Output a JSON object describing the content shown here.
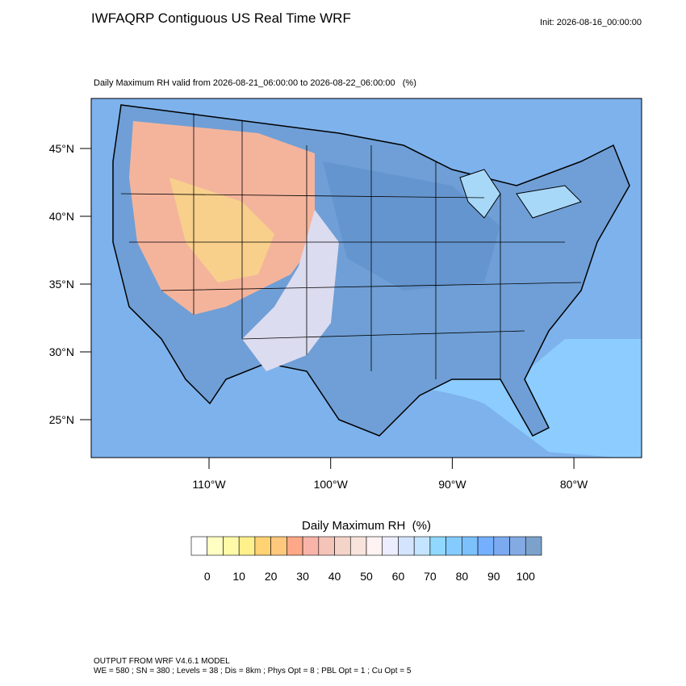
{
  "header": {
    "title": "IWFAQRP Contiguous US Real Time WRF",
    "init": "Init: 2026-08-16_00:00:00",
    "subtitle": "Daily Maximum RH valid from 2026-08-21_06:00:00 to 2026-08-22_06:00:00   (%)"
  },
  "map": {
    "lat_labels": [
      "45°N",
      "40°N",
      "35°N",
      "30°N",
      "25°N"
    ],
    "lon_labels": [
      "110°W",
      "100°W",
      "90°W",
      "80°W"
    ]
  },
  "colorbar": {
    "title": "Daily Maximum RH  (%)",
    "ticks": [
      0,
      10,
      20,
      30,
      40,
      50,
      60,
      70,
      80,
      90,
      100
    ],
    "colors": [
      "#ffffff",
      "#ffffc4",
      "#fffaa8",
      "#fff08c",
      "#ffd274",
      "#ffc87c",
      "#ffa888",
      "#f8b4a8",
      "#f4c4b8",
      "#f4d4c8",
      "#f8e4dc",
      "#fff2f2",
      "#eceeff",
      "#d4e4ff",
      "#c4e4ff",
      "#90d8ff",
      "#84ccff",
      "#7cc0fc",
      "#74b0ff",
      "#7caaf0",
      "#84aae4",
      "#7ca2cc"
    ]
  },
  "footer": {
    "line1": "OUTPUT FROM WRF V4.6.1 MODEL",
    "line2": "WE = 580 ; SN = 380 ; Levels = 38 ; Dis = 8km ; Phys Opt = 8 ; PBL Opt = 1 ; Cu Opt = 5"
  }
}
